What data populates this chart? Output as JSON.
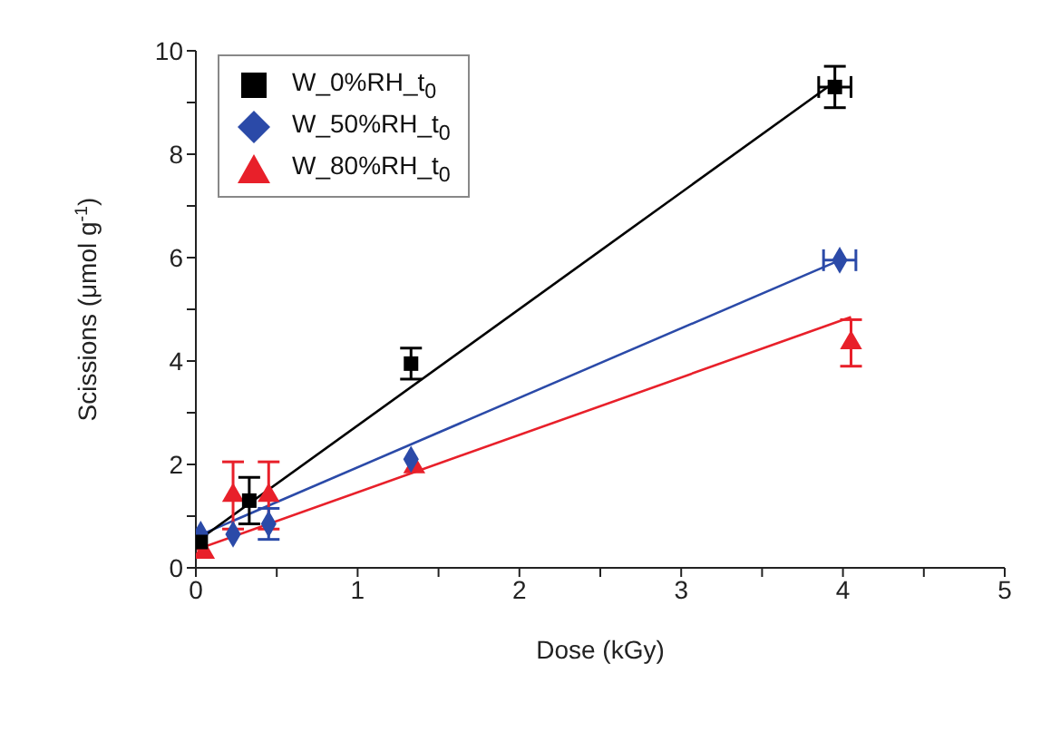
{
  "chart_data": {
    "type": "scatter",
    "xlabel": "Dose (kGy)",
    "ylabel": "Scissions (μmol g$^{-1}$)",
    "xlim": [
      0,
      5
    ],
    "ylim": [
      0,
      10
    ],
    "xticks": [
      0,
      {
        "value": 0.5,
        "label": null
      },
      1,
      {
        "value": 1.5,
        "label": null
      },
      2,
      {
        "value": 2.5,
        "label": null
      },
      3,
      {
        "value": 3.5,
        "label": null
      },
      4,
      {
        "value": 4.5,
        "label": null
      },
      5
    ],
    "yticks": [
      0,
      {
        "value": 1,
        "label": null
      },
      2,
      {
        "value": 3,
        "label": null
      },
      4,
      {
        "value": 5,
        "label": null
      },
      6,
      {
        "value": 7,
        "label": null
      },
      8,
      {
        "value": 9,
        "label": null
      },
      10
    ],
    "legend": "top left",
    "series": [
      {
        "name": "W_0%RH_t$_{0}$",
        "color": "#000000",
        "marker": "square",
        "x": [
          0.03,
          0.33,
          1.33,
          3.95
        ],
        "values": [
          0.5,
          1.3,
          3.95,
          9.3
        ],
        "errors": [
          null,
          0.45,
          0.3,
          0.4
        ],
        "xerrors": [
          null,
          null,
          null,
          0.1
        ]
      },
      {
        "name": "W_50%RH_t$_{0}$",
        "color": "#2b4aa8",
        "marker": "diamond",
        "x": [
          0.03,
          0.23,
          0.45,
          1.33,
          3.98
        ],
        "values": [
          0.65,
          0.65,
          0.85,
          2.1,
          5.95
        ],
        "errors": [
          null,
          null,
          0.3,
          null,
          null
        ],
        "xerrors": [
          null,
          null,
          null,
          null,
          0.1
        ]
      },
      {
        "name": "W_80%RH_t$_{0}$",
        "color": "#e8202a",
        "marker": "triangle",
        "x": [
          0.05,
          0.23,
          0.45,
          1.35,
          4.05
        ],
        "values": [
          0.3,
          1.4,
          1.4,
          1.95,
          4.35
        ],
        "errors": [
          null,
          0.65,
          0.65,
          null,
          0.45
        ]
      },
      {
        "type": "line",
        "color": "#000000",
        "x": [
          0,
          3.95
        ],
        "values": [
          0.5,
          9.4
        ]
      },
      {
        "type": "line",
        "color": "#2b4aa8",
        "x": [
          0,
          3.98
        ],
        "values": [
          0.6,
          5.95
        ]
      },
      {
        "type": "line",
        "color": "#e8202a",
        "x": [
          0,
          4.05
        ],
        "values": [
          0.35,
          4.85
        ]
      }
    ]
  }
}
